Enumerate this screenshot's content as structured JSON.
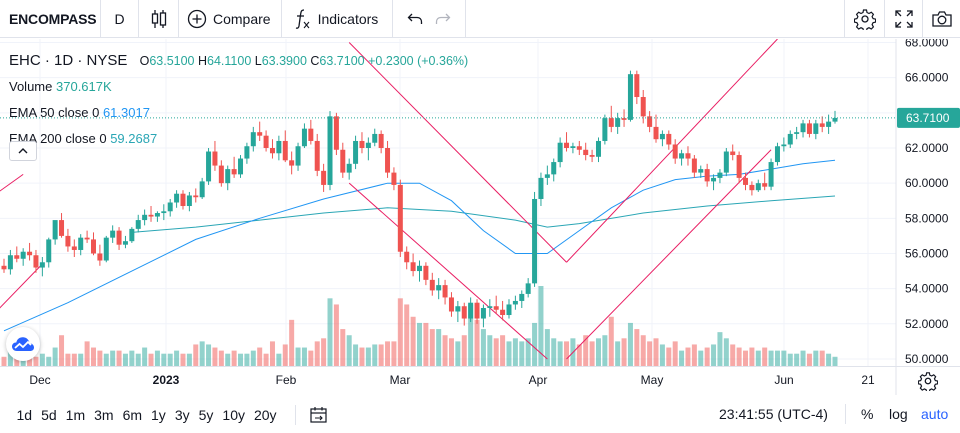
{
  "toolbar": {
    "symbol": "ENCOMPASS",
    "interval": "D",
    "compare_label": "Compare",
    "indicators_label": "Indicators",
    "icons": [
      "candles-icon",
      "plus-circle-icon",
      "function-icon",
      "undo-icon",
      "redo-icon",
      "gear-icon",
      "fullscreen-icon",
      "camera-icon"
    ]
  },
  "legend": {
    "symbol": "EHC",
    "interval": "1D",
    "exchange": "NYSE",
    "o_label": "O",
    "o": "63.5100",
    "h_label": "H",
    "h": "64.1100",
    "l_label": "L",
    "l": "63.3900",
    "c_label": "C",
    "c": "63.7100",
    "change": "+0.2300 (+0.36%)",
    "volume_label": "Volume",
    "volume": "370.617K",
    "ema50_label": "EMA 50 close 0",
    "ema50": "61.3017",
    "ema200_label": "EMA 200 close 0",
    "ema200": "59.2687"
  },
  "price_axis": {
    "ticks": [
      "68.0000",
      "66.0000",
      "64.0000",
      "62.0000",
      "60.0000",
      "58.0000",
      "56.0000",
      "54.0000",
      "52.0000",
      "50.0000"
    ],
    "last_price": "63.7100"
  },
  "time_axis": {
    "labels": [
      "Dec",
      "2023",
      "Feb",
      "Mar",
      "Apr",
      "May",
      "Jun",
      "21"
    ]
  },
  "bottom": {
    "ranges": [
      "1d",
      "5d",
      "1m",
      "3m",
      "6m",
      "1y",
      "3y",
      "5y",
      "10y",
      "20y"
    ],
    "clock": "23:41:55 (UTC-4)",
    "percent_label": "%",
    "log_label": "log",
    "auto_label": "auto"
  },
  "colors": {
    "up": "#26a69a",
    "down": "#ef5350",
    "ema50": "#2196f3",
    "ema200": "#2aa6b5",
    "trend": "#e91e63",
    "accent": "#2962ff"
  },
  "chart_data": {
    "type": "candlestick",
    "symbol": "EHC",
    "ylim": [
      49.6,
      68.2
    ],
    "x_range": [
      "Nov 21",
      "Jun 21"
    ],
    "start_date": "2022-11-21",
    "dates_are_trading_days": true,
    "candles": [
      [
        0,
        55.3,
        55.7,
        54.9,
        55.1
      ],
      [
        1,
        55.1,
        56.2,
        54.8,
        55.9
      ],
      [
        2,
        55.9,
        56.4,
        55.5,
        55.7
      ],
      [
        3,
        55.7,
        56.3,
        55.3,
        56.1
      ],
      [
        4,
        56.1,
        56.6,
        55.6,
        55.9
      ],
      [
        5,
        55.9,
        56.2,
        54.9,
        55.2
      ],
      [
        6,
        55.2,
        55.8,
        54.7,
        55.5
      ],
      [
        7,
        55.5,
        56.9,
        55.2,
        56.8
      ],
      [
        8,
        56.8,
        57.8,
        56.5,
        57.9
      ],
      [
        9,
        57.9,
        58.3,
        56.9,
        57.0
      ],
      [
        10,
        57.0,
        57.4,
        56.1,
        56.4
      ],
      [
        11,
        56.4,
        56.8,
        55.8,
        56.2
      ],
      [
        12,
        56.2,
        57.1,
        55.9,
        56.9
      ],
      [
        13,
        56.9,
        57.3,
        56.6,
        56.8
      ],
      [
        14,
        56.8,
        57.2,
        55.9,
        56.0
      ],
      [
        15,
        56.0,
        56.5,
        55.3,
        55.6
      ],
      [
        16,
        55.6,
        57.0,
        55.5,
        56.9
      ],
      [
        17,
        56.9,
        57.6,
        56.6,
        57.3
      ],
      [
        18,
        57.3,
        57.5,
        56.2,
        56.5
      ],
      [
        19,
        56.5,
        57.0,
        56.3,
        56.7
      ],
      [
        20,
        56.7,
        57.5,
        56.6,
        57.4
      ],
      [
        21,
        57.4,
        58.2,
        57.2,
        57.9
      ],
      [
        22,
        57.9,
        58.5,
        57.6,
        58.2
      ],
      [
        23,
        58.2,
        58.7,
        57.8,
        58.1
      ],
      [
        24,
        58.1,
        58.4,
        57.8,
        58.3
      ],
      [
        25,
        58.3,
        58.8,
        57.9,
        58.4
      ],
      [
        26,
        58.4,
        59.1,
        58.1,
        58.9
      ],
      [
        27,
        58.9,
        59.6,
        58.6,
        59.4
      ],
      [
        28,
        59.4,
        59.6,
        58.5,
        58.7
      ],
      [
        29,
        58.7,
        59.5,
        58.4,
        59.3
      ],
      [
        30,
        59.3,
        59.7,
        58.9,
        59.2
      ],
      [
        31,
        59.2,
        60.3,
        59.1,
        60.1
      ],
      [
        32,
        60.1,
        62.0,
        59.9,
        61.8
      ],
      [
        33,
        61.8,
        62.4,
        60.7,
        61.0
      ],
      [
        34,
        61.0,
        61.3,
        59.8,
        60.0
      ],
      [
        35,
        60.0,
        61.0,
        59.6,
        60.8
      ],
      [
        36,
        60.8,
        61.5,
        60.3,
        60.5
      ],
      [
        37,
        60.5,
        61.6,
        60.3,
        61.4
      ],
      [
        38,
        61.4,
        62.3,
        61.1,
        62.1
      ],
      [
        39,
        62.1,
        63.2,
        61.8,
        62.9
      ],
      [
        40,
        62.9,
        63.5,
        62.4,
        62.7
      ],
      [
        41,
        62.7,
        63.0,
        61.8,
        62.0
      ],
      [
        42,
        62.0,
        62.5,
        61.4,
        61.7
      ],
      [
        43,
        61.7,
        62.7,
        61.3,
        62.4
      ],
      [
        44,
        62.4,
        63.0,
        61.2,
        61.3
      ],
      [
        45,
        61.3,
        61.8,
        60.5,
        61.0
      ],
      [
        46,
        61.0,
        62.3,
        60.7,
        62.1
      ],
      [
        47,
        62.1,
        63.4,
        62.0,
        63.1
      ],
      [
        48,
        63.1,
        63.6,
        62.2,
        62.4
      ],
      [
        49,
        62.4,
        62.8,
        60.4,
        60.7
      ],
      [
        50,
        60.7,
        61.1,
        59.5,
        59.9
      ],
      [
        51,
        59.9,
        64.1,
        59.6,
        63.8
      ],
      [
        52,
        63.8,
        64.0,
        61.6,
        61.9
      ],
      [
        53,
        61.9,
        62.3,
        60.3,
        60.6
      ],
      [
        54,
        60.6,
        61.4,
        60.2,
        61.1
      ],
      [
        55,
        61.1,
        62.7,
        60.8,
        62.4
      ],
      [
        56,
        62.4,
        62.9,
        61.7,
        62.0
      ],
      [
        57,
        62.0,
        62.6,
        61.3,
        62.3
      ],
      [
        58,
        62.3,
        63.1,
        62.1,
        62.8
      ],
      [
        59,
        62.8,
        63.0,
        61.7,
        62.0
      ],
      [
        60,
        62.0,
        62.4,
        60.3,
        60.6
      ],
      [
        61,
        60.6,
        60.9,
        59.6,
        59.9
      ],
      [
        62,
        59.9,
        60.2,
        55.8,
        56.1
      ],
      [
        63,
        56.1,
        56.4,
        55.1,
        55.5
      ],
      [
        64,
        55.5,
        56.0,
        54.7,
        55.0
      ],
      [
        65,
        55.0,
        55.6,
        54.4,
        55.3
      ],
      [
        66,
        55.3,
        55.5,
        54.2,
        54.5
      ],
      [
        67,
        54.5,
        54.9,
        53.6,
        53.9
      ],
      [
        68,
        53.9,
        54.6,
        53.4,
        54.2
      ],
      [
        69,
        54.2,
        54.5,
        53.1,
        53.5
      ],
      [
        70,
        53.5,
        53.8,
        52.4,
        52.7
      ],
      [
        71,
        52.7,
        53.3,
        52.1,
        53.0
      ],
      [
        72,
        53.0,
        53.2,
        51.9,
        52.3
      ],
      [
        73,
        52.3,
        53.5,
        52.1,
        53.2
      ],
      [
        74,
        53.2,
        53.4,
        52.0,
        52.3
      ],
      [
        75,
        52.3,
        53.1,
        51.8,
        52.9
      ],
      [
        76,
        52.9,
        53.4,
        52.4,
        53.0
      ],
      [
        77,
        53.0,
        53.6,
        52.6,
        52.8
      ],
      [
        78,
        52.8,
        53.3,
        52.2,
        52.5
      ],
      [
        79,
        52.5,
        53.4,
        52.3,
        53.1
      ],
      [
        80,
        53.1,
        53.6,
        52.8,
        53.3
      ],
      [
        81,
        53.3,
        53.9,
        52.9,
        53.7
      ],
      [
        82,
        53.7,
        54.6,
        53.5,
        54.3
      ],
      [
        83,
        54.3,
        59.5,
        54.1,
        59.1
      ],
      [
        84,
        59.1,
        60.6,
        58.7,
        60.3
      ],
      [
        85,
        60.3,
        61.0,
        59.9,
        60.5
      ],
      [
        86,
        60.5,
        61.4,
        60.1,
        61.2
      ],
      [
        87,
        61.2,
        62.6,
        60.9,
        62.3
      ],
      [
        88,
        62.3,
        62.9,
        61.8,
        62.0
      ],
      [
        89,
        62.0,
        62.3,
        61.7,
        62.1
      ],
      [
        90,
        62.1,
        62.4,
        61.6,
        61.9
      ],
      [
        91,
        61.9,
        62.3,
        61.3,
        61.6
      ],
      [
        92,
        61.6,
        61.9,
        61.2,
        61.5
      ],
      [
        93,
        61.5,
        62.6,
        61.2,
        62.4
      ],
      [
        94,
        62.4,
        63.9,
        62.2,
        63.7
      ],
      [
        95,
        63.7,
        64.4,
        62.9,
        63.2
      ],
      [
        96,
        63.2,
        64.0,
        62.8,
        63.7
      ],
      [
        97,
        63.7,
        64.2,
        63.2,
        63.6
      ],
      [
        98,
        63.6,
        66.4,
        63.5,
        66.2
      ],
      [
        99,
        66.2,
        66.4,
        64.5,
        64.9
      ],
      [
        100,
        64.9,
        65.3,
        63.4,
        63.8
      ],
      [
        101,
        63.8,
        64.1,
        62.9,
        63.2
      ],
      [
        102,
        63.2,
        63.9,
        62.3,
        62.5
      ],
      [
        103,
        62.5,
        63.0,
        62.1,
        62.8
      ],
      [
        104,
        62.8,
        63.0,
        61.9,
        62.2
      ],
      [
        105,
        62.2,
        62.5,
        61.1,
        61.4
      ],
      [
        106,
        61.4,
        61.9,
        61.0,
        61.7
      ],
      [
        107,
        61.7,
        62.1,
        61.0,
        61.4
      ],
      [
        108,
        61.4,
        61.6,
        60.3,
        60.6
      ],
      [
        109,
        60.6,
        61.0,
        60.3,
        60.8
      ],
      [
        110,
        60.8,
        61.1,
        59.8,
        60.1
      ],
      [
        111,
        60.1,
        60.5,
        59.6,
        60.3
      ],
      [
        112,
        60.3,
        60.8,
        60.0,
        60.6
      ],
      [
        113,
        60.6,
        62.0,
        60.4,
        61.8
      ],
      [
        114,
        61.8,
        62.2,
        61.3,
        61.6
      ],
      [
        115,
        61.6,
        61.8,
        60.0,
        60.3
      ],
      [
        116,
        60.3,
        60.6,
        59.6,
        59.9
      ],
      [
        117,
        59.9,
        60.1,
        59.3,
        59.6
      ],
      [
        118,
        59.6,
        60.2,
        59.5,
        60.0
      ],
      [
        119,
        60.0,
        60.6,
        59.6,
        59.8
      ],
      [
        120,
        59.8,
        61.4,
        59.6,
        61.2
      ],
      [
        121,
        61.2,
        62.3,
        61.0,
        62.1
      ],
      [
        122,
        62.1,
        62.6,
        61.8,
        62.2
      ],
      [
        123,
        62.2,
        63.0,
        62.0,
        62.8
      ],
      [
        124,
        62.8,
        63.2,
        62.5,
        62.9
      ],
      [
        125,
        62.9,
        63.6,
        62.6,
        63.4
      ],
      [
        126,
        63.4,
        63.6,
        62.6,
        62.8
      ],
      [
        127,
        62.8,
        63.6,
        62.5,
        63.4
      ],
      [
        128,
        63.4,
        63.8,
        62.9,
        63.2
      ],
      [
        129,
        63.2,
        63.9,
        62.8,
        63.5
      ],
      [
        130,
        63.5,
        64.11,
        63.39,
        63.71
      ]
    ],
    "volume": [
      3,
      6,
      6,
      4,
      3,
      3,
      4,
      3,
      6,
      10,
      4,
      4,
      4,
      8,
      6,
      5,
      4,
      5,
      5,
      4,
      5,
      4,
      6,
      4,
      5,
      4,
      4,
      5,
      4,
      4,
      7,
      8,
      7,
      6,
      5,
      4,
      5,
      4,
      4,
      5,
      6,
      4,
      8,
      4,
      7,
      15,
      6,
      6,
      5,
      8,
      9,
      22,
      20,
      12,
      10,
      7,
      6,
      6,
      7,
      7,
      8,
      8,
      22,
      20,
      16,
      14,
      14,
      12,
      12,
      10,
      9,
      8,
      10,
      20,
      15,
      12,
      10,
      9,
      10,
      8,
      9,
      8,
      9,
      14,
      26,
      12,
      9,
      8,
      8,
      9,
      7,
      10,
      8,
      9,
      10,
      16,
      8,
      9,
      14,
      12,
      10,
      8,
      9,
      7,
      6,
      8,
      5,
      6,
      7,
      5,
      6,
      7,
      11,
      9,
      7,
      6,
      5,
      6,
      5,
      6,
      5,
      5,
      5,
      4,
      4,
      5,
      4,
      5,
      5,
      4,
      3
    ],
    "ema50": [
      [
        0,
        51.6
      ],
      [
        10,
        53.2
      ],
      [
        20,
        55.0
      ],
      [
        30,
        56.8
      ],
      [
        40,
        58.0
      ],
      [
        50,
        59.1
      ],
      [
        60,
        60.0
      ],
      [
        65,
        60.0
      ],
      [
        70,
        59.0
      ],
      [
        75,
        57.3
      ],
      [
        80,
        56.0
      ],
      [
        85,
        56.0
      ],
      [
        90,
        57.3
      ],
      [
        95,
        58.6
      ],
      [
        100,
        59.6
      ],
      [
        105,
        60.2
      ],
      [
        110,
        60.4
      ],
      [
        115,
        60.5
      ],
      [
        120,
        60.8
      ],
      [
        125,
        61.1
      ],
      [
        130,
        61.3
      ]
    ],
    "ema200": [
      [
        20,
        57.2
      ],
      [
        30,
        57.5
      ],
      [
        40,
        57.9
      ],
      [
        50,
        58.3
      ],
      [
        60,
        58.6
      ],
      [
        70,
        58.4
      ],
      [
        80,
        57.9
      ],
      [
        85,
        57.5
      ],
      [
        90,
        57.7
      ],
      [
        100,
        58.3
      ],
      [
        110,
        58.7
      ],
      [
        120,
        59.0
      ],
      [
        130,
        59.27
      ]
    ],
    "trendlines": [
      [
        [
          -2,
          59.2
        ],
        [
          3,
          60.5
        ]
      ],
      [
        [
          -2,
          52.4
        ],
        [
          6,
          55.4
        ]
      ],
      [
        [
          54,
          68.0
        ],
        [
          88,
          55.5
        ]
      ],
      [
        [
          54,
          60.0
        ],
        [
          85,
          50.0
        ]
      ],
      [
        [
          88,
          55.5
        ],
        [
          121,
          68.2
        ]
      ],
      [
        [
          88,
          50.0
        ],
        [
          120,
          61.9
        ]
      ]
    ],
    "last_price": 63.71
  }
}
